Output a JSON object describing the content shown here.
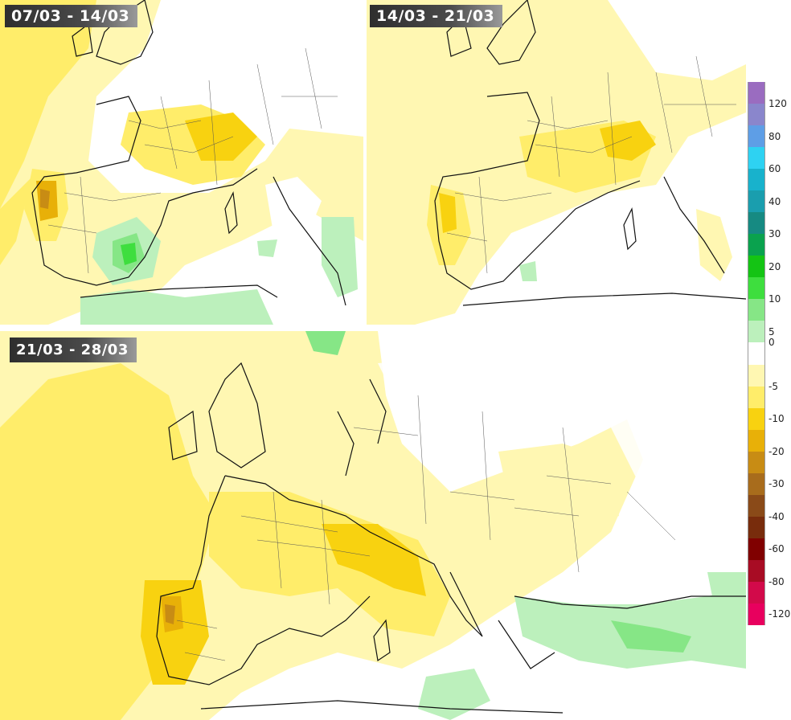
{
  "panels": {
    "p1": {
      "title": "07/03 - 14/03"
    },
    "p2": {
      "title": "14/03 - 21/03"
    },
    "p3": {
      "title": "21/03 - 28/03"
    }
  },
  "legend": {
    "colors": [
      "#9a6cc0",
      "#8a86cc",
      "#5e9ee6",
      "#2ed2f2",
      "#18b2cc",
      "#1a9eae",
      "#168a82",
      "#0aa24e",
      "#14c414",
      "#3ede3e",
      "#86e686",
      "#bcf0bc",
      "#ffffff",
      "#fff7b2",
      "#ffed6a",
      "#f8d210",
      "#e8b008",
      "#c88c14",
      "#a86c1c",
      "#8a4a18",
      "#782c0c",
      "#800000",
      "#a80c24",
      "#d20a4a",
      "#e8005e"
    ],
    "ticks": [
      "120",
      "80",
      "60",
      "40",
      "30",
      "20",
      "10",
      "5",
      "0",
      "-5",
      "-10",
      "-20",
      "-30",
      "-40",
      "-60",
      "-80",
      "-120"
    ]
  }
}
